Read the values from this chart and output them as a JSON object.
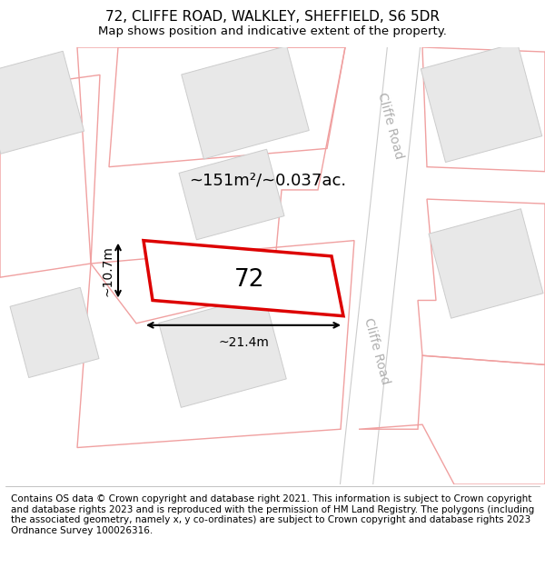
{
  "title": "72, CLIFFE ROAD, WALKLEY, SHEFFIELD, S6 5DR",
  "subtitle": "Map shows position and indicative extent of the property.",
  "footer": "Contains OS data © Crown copyright and database right 2021. This information is subject to Crown copyright and database rights 2023 and is reproduced with the permission of HM Land Registry. The polygons (including the associated geometry, namely x, y co-ordinates) are subject to Crown copyright and database rights 2023 Ordnance Survey 100026316.",
  "map_bg": "#ffffff",
  "road_color": "#ffffff",
  "road_border": "#cccccc",
  "plot_outline_color": "#f0a0a0",
  "building_fill": "#e8e8e8",
  "building_outline": "#cccccc",
  "highlight_fill": "#ffffff",
  "highlight_outline": "#dd0000",
  "area_text": "~151m²/~0.037ac.",
  "number_label": "72",
  "width_label": "~21.4m",
  "height_label": "~10.7m",
  "road_label": "Cliffe Road",
  "title_fontsize": 11,
  "subtitle_fontsize": 9.5,
  "footer_fontsize": 7.5,
  "title_fontweight": "normal"
}
